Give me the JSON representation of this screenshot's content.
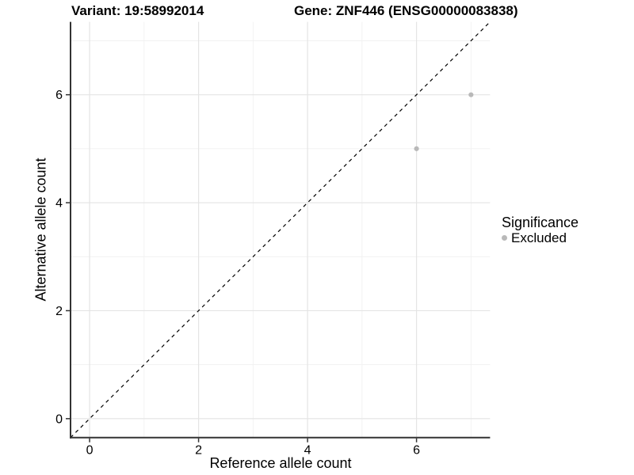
{
  "chart_data": {
    "type": "scatter",
    "title_left": "Variant: 19:58992014",
    "title_right": "Gene: ZNF446 (ENSG00000083838)",
    "xlabel": "Reference allele count",
    "ylabel": "Alternative allele count",
    "x_ticks": [
      0,
      2,
      4,
      6
    ],
    "y_ticks": [
      0,
      2,
      4,
      6
    ],
    "x_minor": [
      1,
      3,
      5,
      7
    ],
    "y_minor": [
      1,
      3,
      5,
      7
    ],
    "xlim": [
      -0.35,
      7.35
    ],
    "ylim": [
      -0.35,
      7.35
    ],
    "grid": "major+minor",
    "series": [
      {
        "name": "Excluded",
        "color": "#b9b9b9",
        "points": [
          {
            "x": 6,
            "y": 5
          },
          {
            "x": 7,
            "y": 6
          }
        ]
      }
    ],
    "reference_line": {
      "type": "identity",
      "slope": 1,
      "intercept": 0,
      "style": "dashed",
      "color": "#000000"
    },
    "legend": {
      "title": "Significance",
      "position": "right",
      "entries": [
        {
          "label": "Excluded",
          "color": "#b9b9b9"
        }
      ]
    },
    "colors": {
      "background": "#ffffff",
      "axis_line": "#333333",
      "tick_label": "#000000",
      "grid_major": "#e4e4e4",
      "grid_minor": "#f1f1f1"
    }
  }
}
